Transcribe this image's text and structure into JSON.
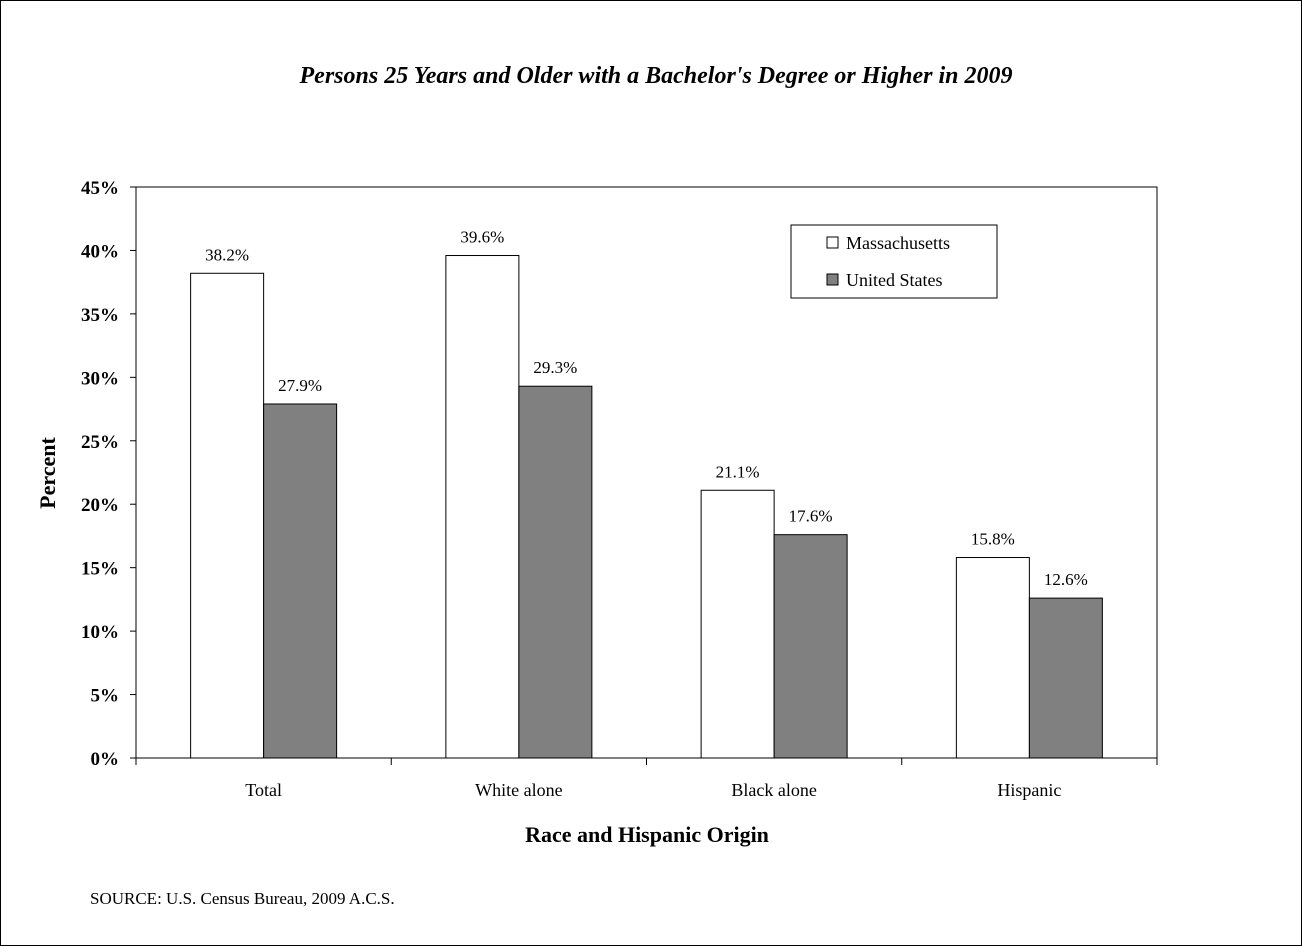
{
  "chart_data": {
    "type": "bar",
    "title": "Persons 25 Years and Older with a Bachelor's Degree or Higher in 2009",
    "xlabel": "Race and Hispanic Origin",
    "ylabel": "Percent",
    "categories": [
      "Total",
      "White alone",
      "Black alone",
      "Hispanic"
    ],
    "series": [
      {
        "name": "Massachusetts",
        "values": [
          38.2,
          39.6,
          21.1,
          15.8
        ],
        "labels": [
          "38.2%",
          "39.6%",
          "21.1%",
          "15.8%"
        ],
        "color": "#ffffff"
      },
      {
        "name": "United States",
        "values": [
          27.9,
          29.3,
          17.6,
          12.6
        ],
        "labels": [
          "27.9%",
          "29.3%",
          "17.6%",
          "12.6%"
        ],
        "color": "#808080"
      }
    ],
    "ylim": [
      0,
      45
    ],
    "yticks": [
      0,
      5,
      10,
      15,
      20,
      25,
      30,
      35,
      40,
      45
    ],
    "ytick_labels": [
      "0%",
      "5%",
      "10%",
      "15%",
      "20%",
      "25%",
      "30%",
      "35%",
      "40%",
      "45%"
    ],
    "grid": false,
    "legend_position": "top-right"
  },
  "source": "SOURCE: U.S. Census Bureau, 2009 A.C.S."
}
